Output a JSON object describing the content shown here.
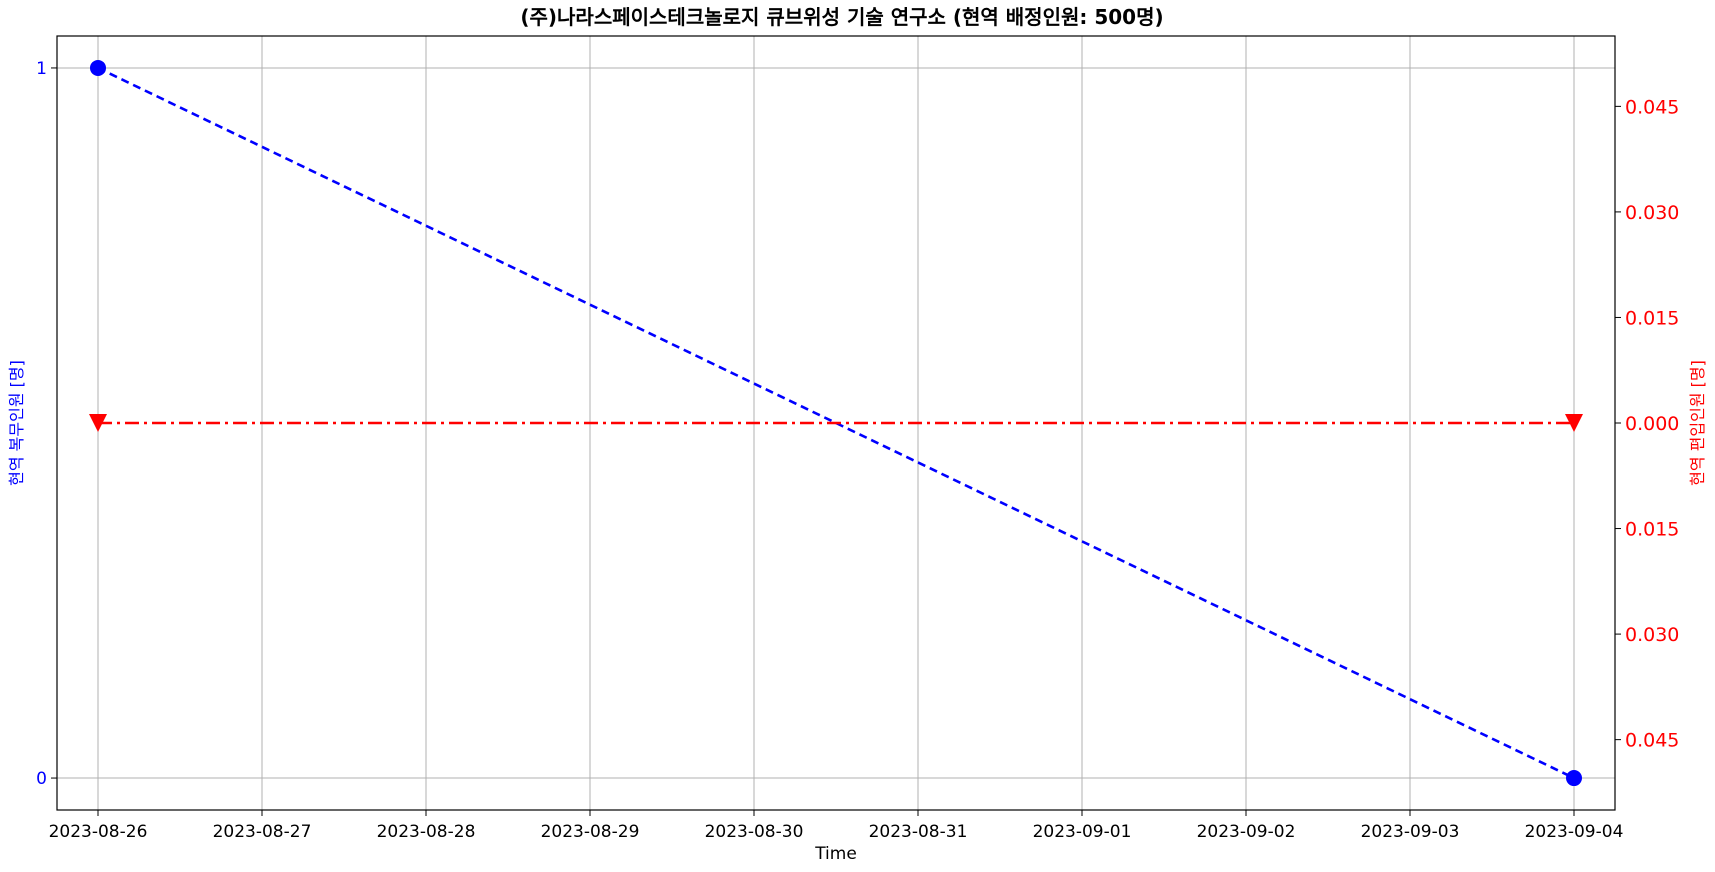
{
  "chart_data": {
    "type": "line",
    "title": "(주)나라스페이스테크놀로지 큐브위성 기술 연구소 (현역 배정인원: 500명)",
    "xlabel": "Time",
    "ylabel_left": "현역 복무인원 [명]",
    "ylabel_right": "현역 편입인원 [명]",
    "x_ticks": [
      "2023-08-26",
      "2023-08-27",
      "2023-08-28",
      "2023-08-29",
      "2023-08-30",
      "2023-08-31",
      "2023-09-01",
      "2023-09-02",
      "2023-09-03",
      "2023-09-04"
    ],
    "xlim": [
      "2023-08-25 18:00",
      "2023-09-04 06:00"
    ],
    "left_axis": {
      "ylim": [
        -0.045,
        1.045
      ],
      "ticks": [
        0,
        1
      ],
      "tick_labels": [
        "0",
        "1"
      ],
      "color": "#0000ff"
    },
    "right_axis": {
      "ylim": [
        -0.055,
        0.055
      ],
      "ticks": [
        0.045,
        0.03,
        0.015,
        0.0,
        -0.015,
        -0.03,
        -0.045
      ],
      "tick_labels": [
        "0.045",
        "0.030",
        "0.015",
        "0.000",
        "0.015",
        "0.030",
        "0.045"
      ],
      "color": "#ff0000"
    },
    "series": [
      {
        "axis": "left",
        "color": "#0000ff",
        "line_style": "dashed",
        "marker": "circle",
        "x": [
          "2023-08-26",
          "2023-09-04"
        ],
        "y": [
          1,
          0
        ]
      },
      {
        "axis": "right",
        "color": "#ff0000",
        "line_style": "dashdot",
        "marker": "triangle-down",
        "x": [
          "2023-08-26",
          "2023-09-04"
        ],
        "y": [
          0,
          0
        ]
      }
    ],
    "grid": true,
    "legend": "none"
  }
}
